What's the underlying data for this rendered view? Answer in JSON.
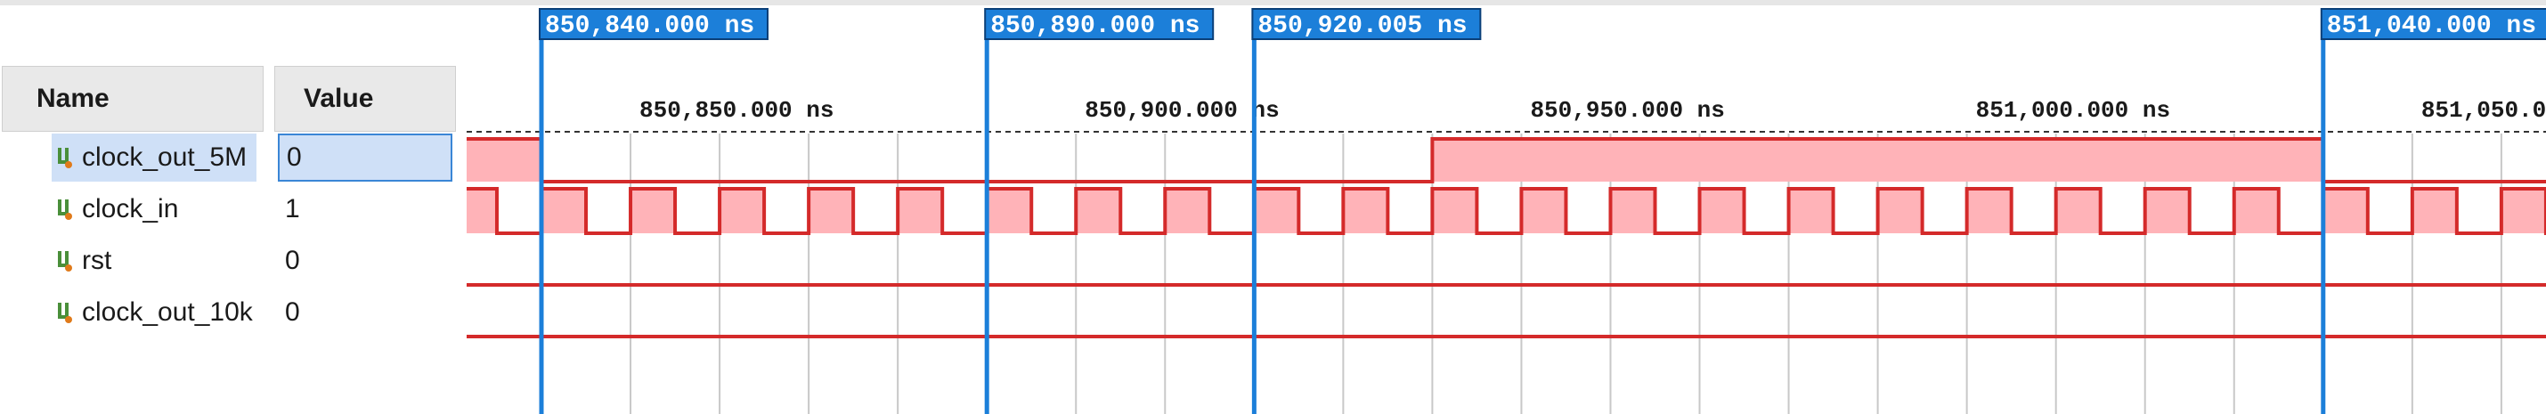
{
  "columns": {
    "name": "Name",
    "value": "Value"
  },
  "signals": [
    {
      "name": "clock_out_5M",
      "value": "0",
      "selected": true
    },
    {
      "name": "clock_in",
      "value": "1",
      "selected": false
    },
    {
      "name": "rst",
      "value": "0",
      "selected": false
    },
    {
      "name": "clock_out_10k",
      "value": "0",
      "selected": false
    }
  ],
  "cursors": [
    {
      "label": "850,840.000 ns",
      "time_ns": 850840.0
    },
    {
      "label": "850,890.000 ns",
      "time_ns": 850890.0
    },
    {
      "label": "850,920.005 ns",
      "time_ns": 850920.005
    },
    {
      "label": "851,040.000 ns",
      "time_ns": 851040.0
    }
  ],
  "time_ruler": [
    {
      "label": "850,850.000 ns",
      "time_ns": 850850
    },
    {
      "label": "850,900.000 ns",
      "time_ns": 850900
    },
    {
      "label": "850,950.000 ns",
      "time_ns": 850950
    },
    {
      "label": "851,000.000 ns",
      "time_ns": 851000
    },
    {
      "label": "851,050.0",
      "time_ns": 851050
    }
  ],
  "colors": {
    "cursor": "#1c7fd9",
    "wave_line": "#d42a2a",
    "wave_fill": "#ffb3b8",
    "grid": "#c8c8c8"
  }
}
